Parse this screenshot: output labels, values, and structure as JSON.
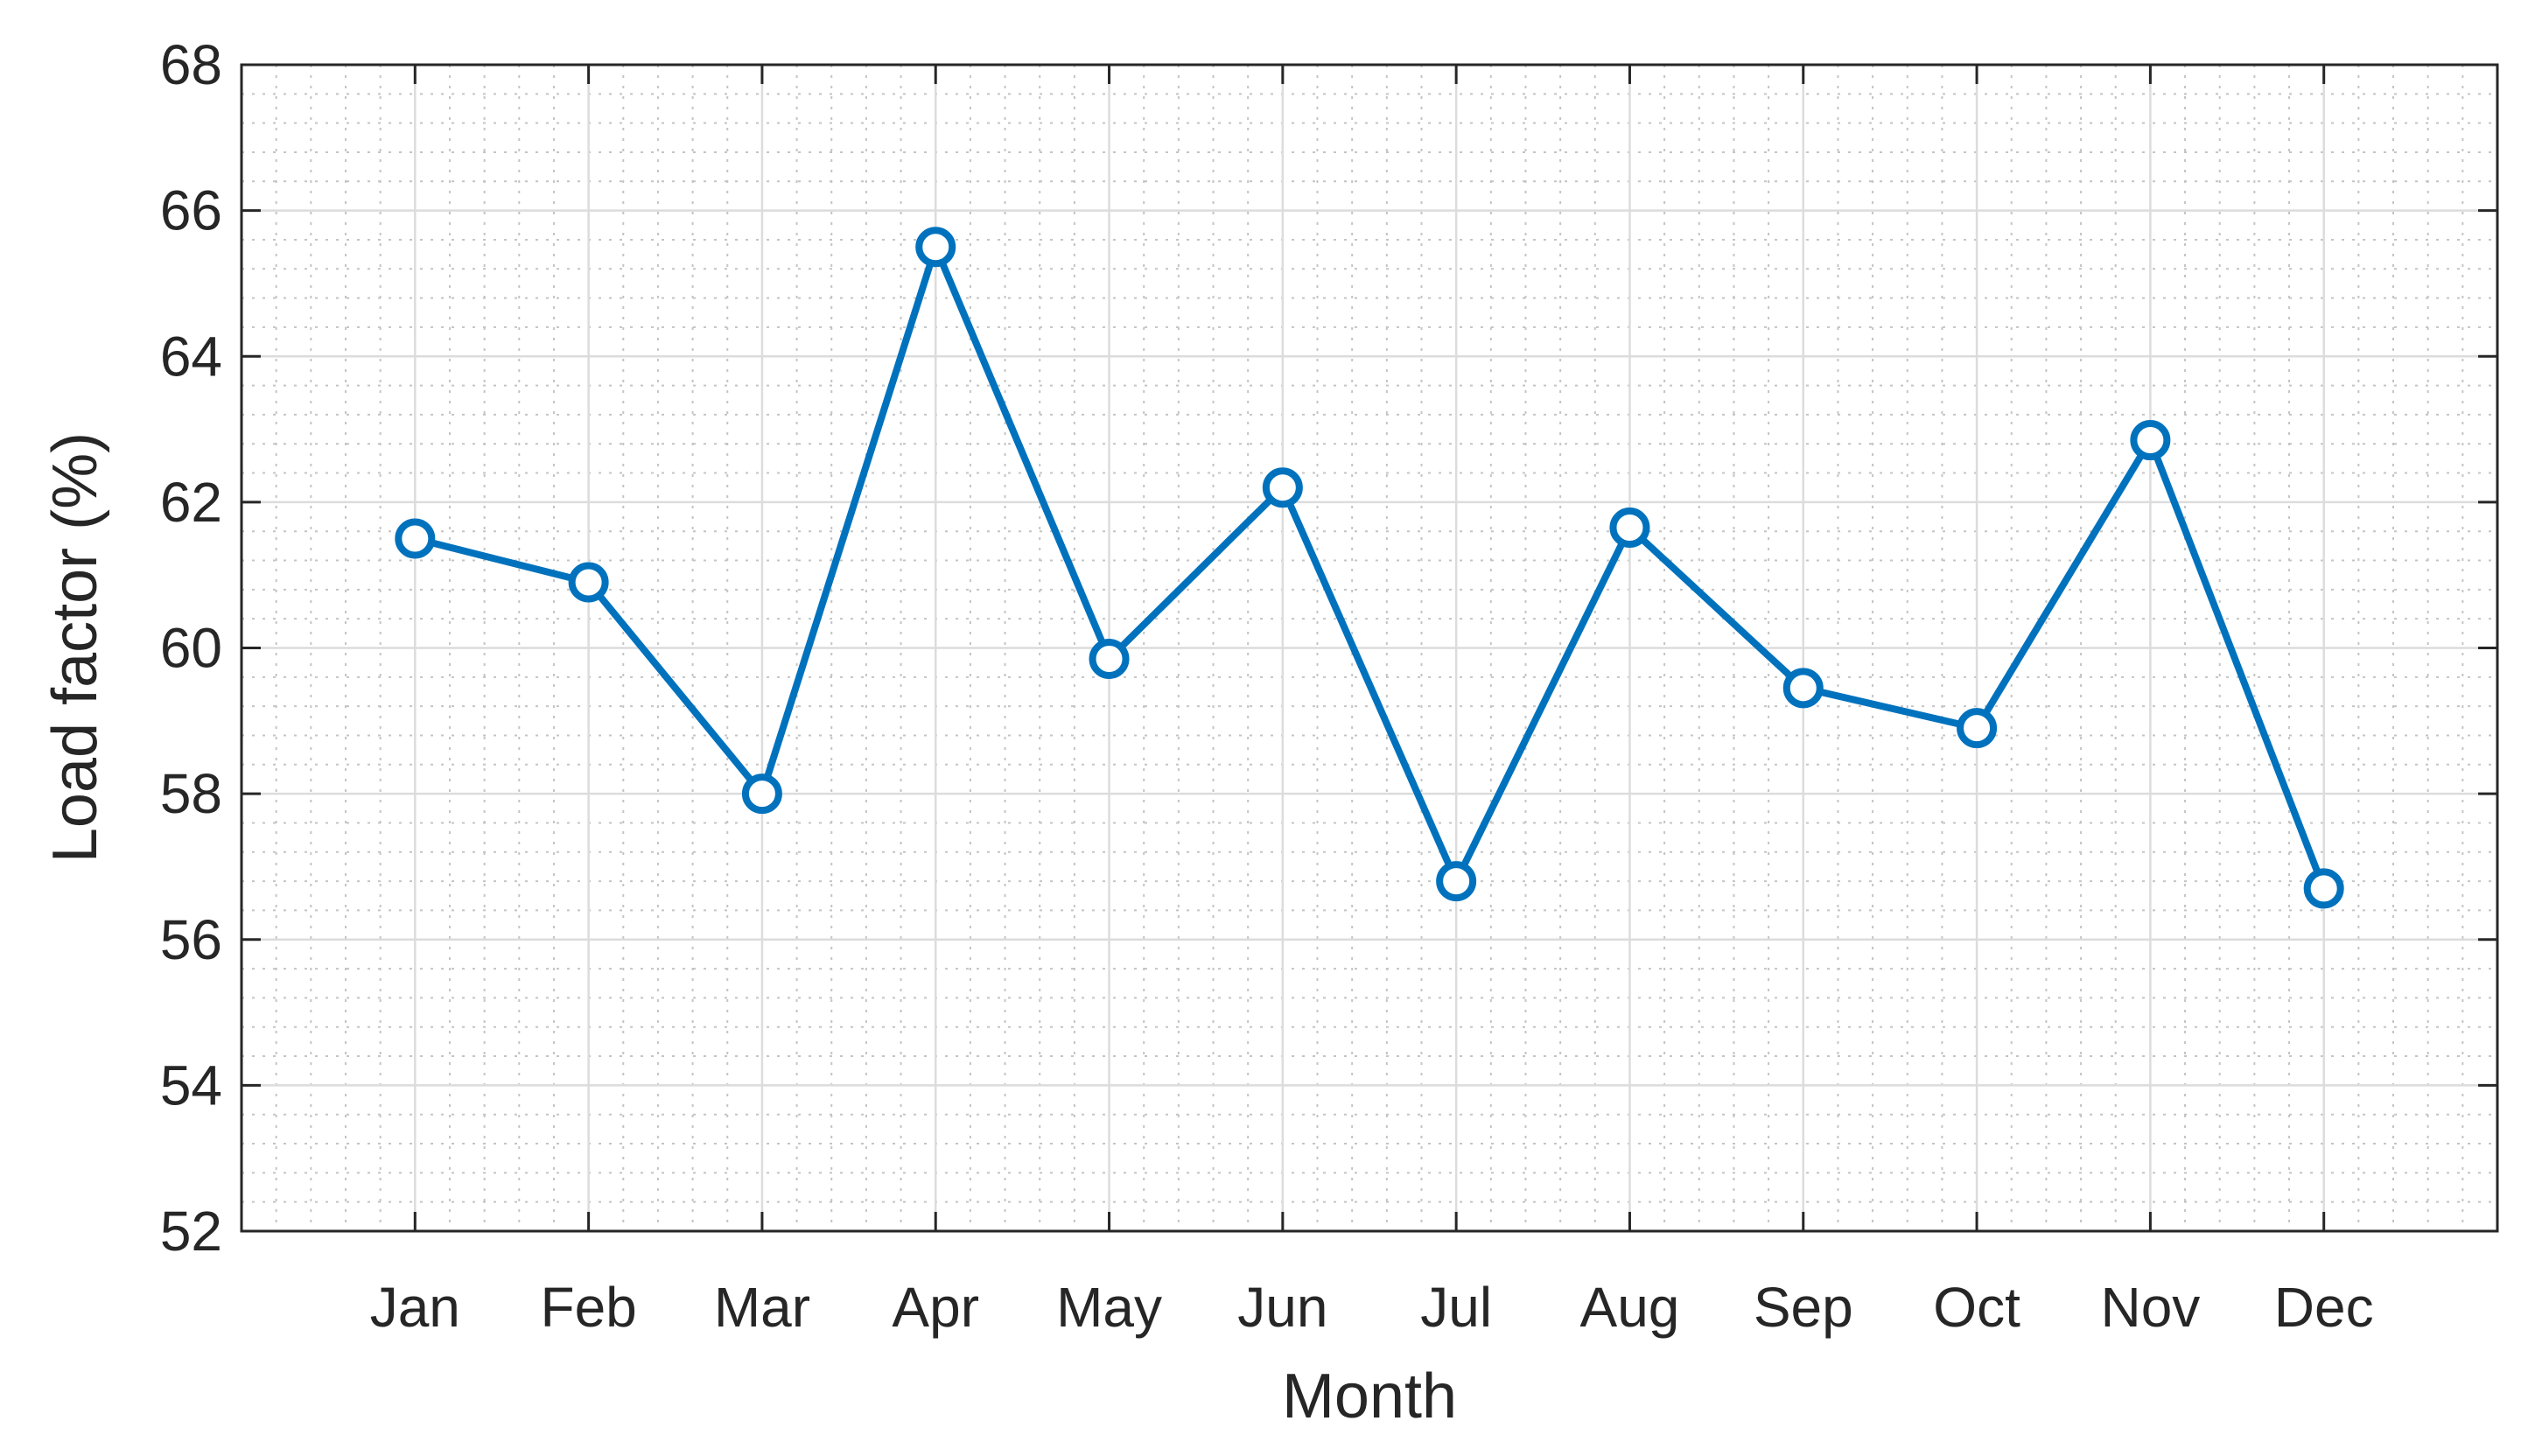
{
  "chart_data": {
    "type": "line",
    "title": "",
    "xlabel": "Month",
    "ylabel": "Load factor (%)",
    "categories": [
      "Jan",
      "Feb",
      "Mar",
      "Apr",
      "May",
      "Jun",
      "Jul",
      "Aug",
      "Sep",
      "Oct",
      "Nov",
      "Dec"
    ],
    "series": [
      {
        "values": [
          61.5,
          60.9,
          58.0,
          65.5,
          59.85,
          62.2,
          56.8,
          61.65,
          59.45,
          58.9,
          62.85,
          56.7
        ],
        "color": "#0072BD",
        "marker": "circle"
      }
    ],
    "ylim": [
      52,
      68
    ],
    "yticks": [
      "52",
      "54",
      "56",
      "58",
      "60",
      "62",
      "64",
      "66",
      "68"
    ],
    "grid": true,
    "minor_grid": true,
    "legend": "none"
  }
}
